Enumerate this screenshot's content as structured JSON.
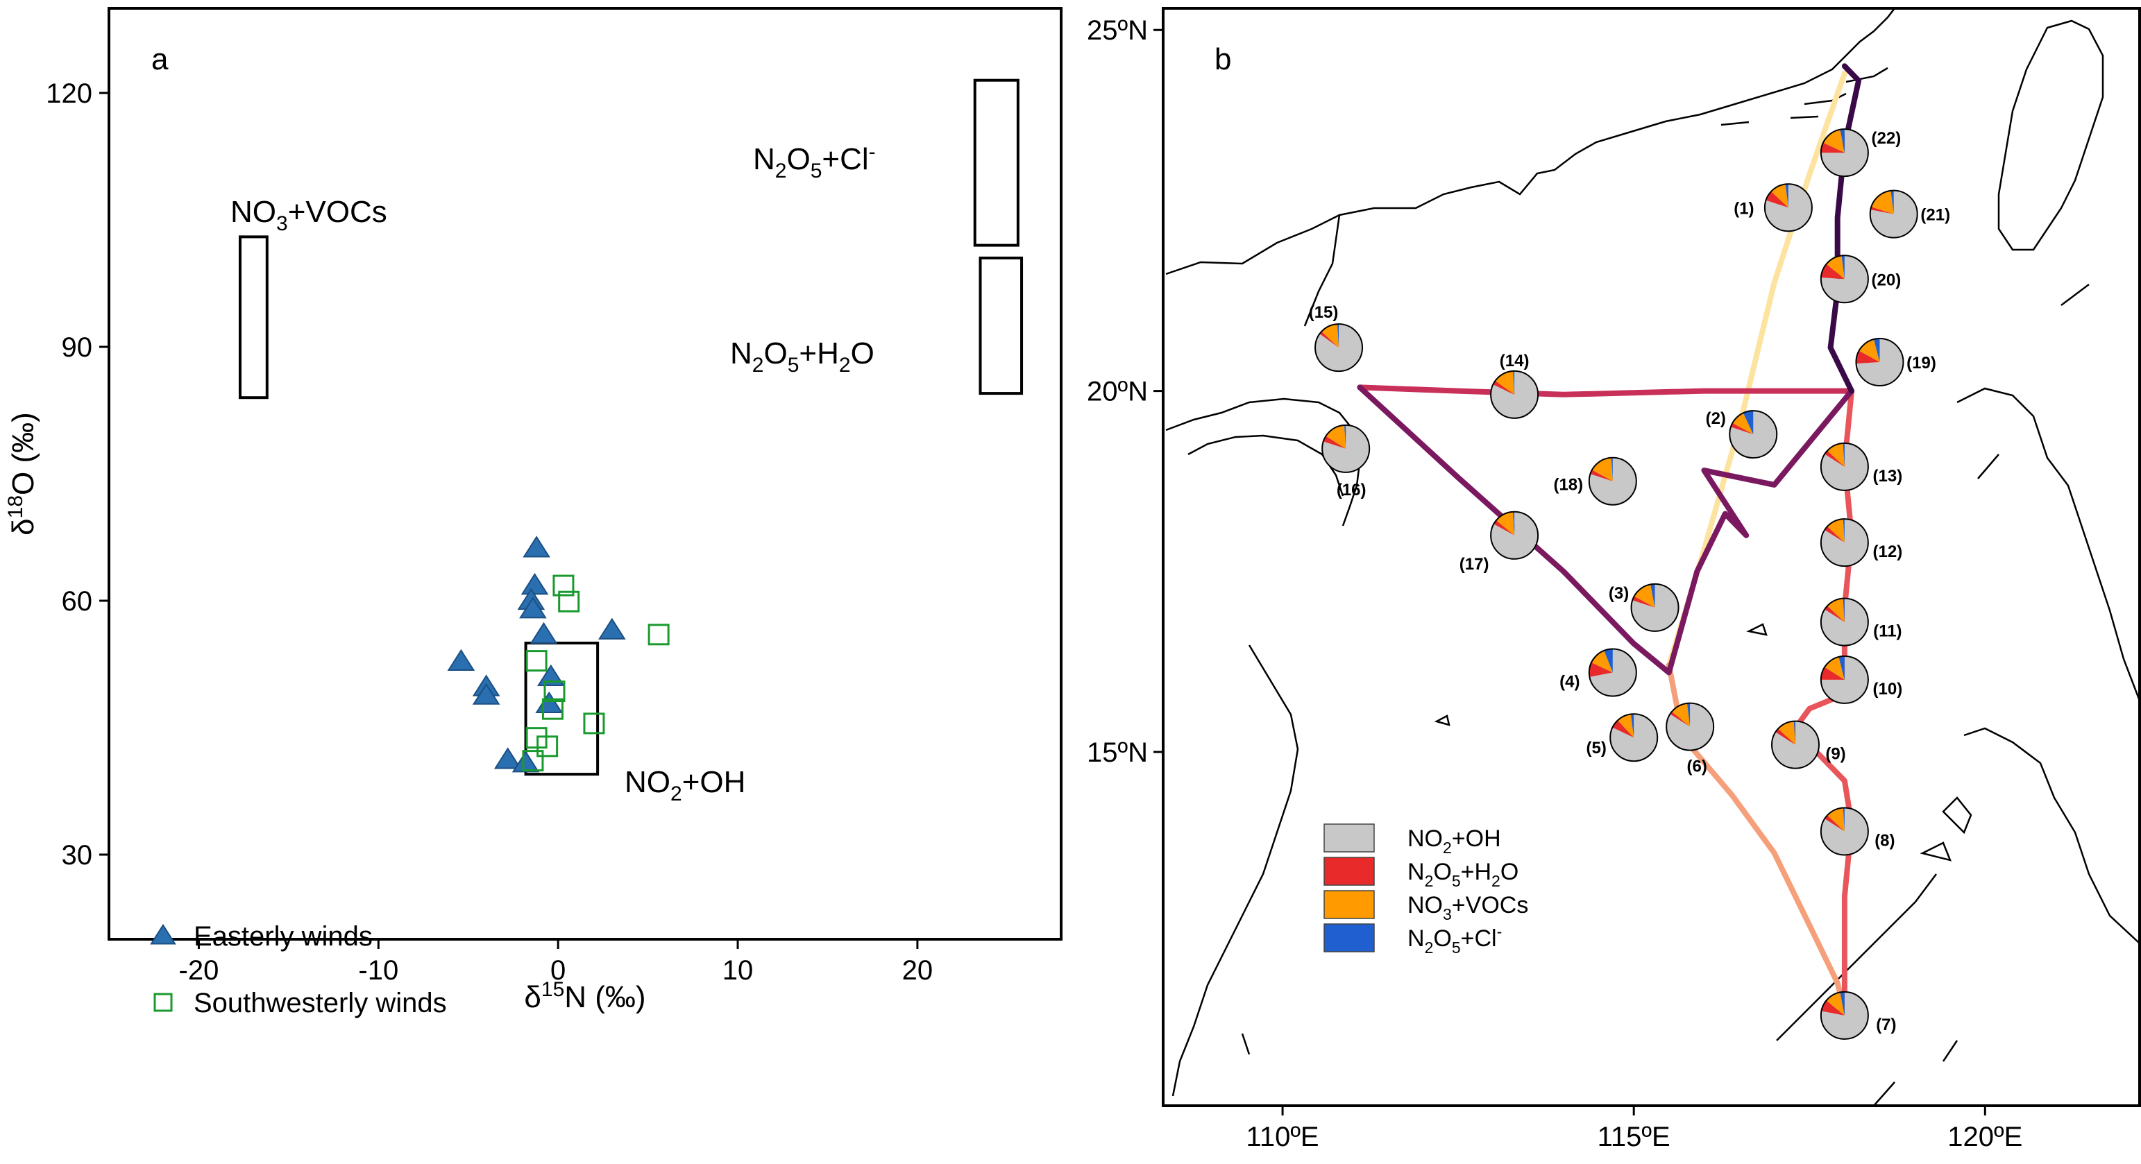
{
  "chart_data": [
    {
      "panel_label": "a",
      "type": "scatter",
      "xlabel": "δ15N (‰)",
      "ylabel": "δ18O (‰)",
      "xlim": [
        -25,
        28
      ],
      "ylim": [
        20,
        130
      ],
      "x_ticks": [
        -20,
        -10,
        0,
        10,
        20
      ],
      "y_ticks": [
        30,
        60,
        90,
        120
      ],
      "series": [
        {
          "name": "Easterly winds",
          "marker": "filled-triangle",
          "color": "#2a6fb0",
          "points": [
            {
              "x": -1.2,
              "y": 66.2
            },
            {
              "x": -1.3,
              "y": 61.8
            },
            {
              "x": -1.5,
              "y": 60.0
            },
            {
              "x": -1.4,
              "y": 59.0
            },
            {
              "x": 3.0,
              "y": 56.5
            },
            {
              "x": -0.8,
              "y": 56.0
            },
            {
              "x": -5.4,
              "y": 52.8
            },
            {
              "x": -0.4,
              "y": 51.0
            },
            {
              "x": -4.0,
              "y": 49.8
            },
            {
              "x": -4.0,
              "y": 48.8
            },
            {
              "x": -0.5,
              "y": 47.8
            },
            {
              "x": -2.8,
              "y": 41.2
            },
            {
              "x": -1.8,
              "y": 40.8
            }
          ]
        },
        {
          "name": "Southwesterly winds",
          "marker": "open-square",
          "color": "#1a9a2e",
          "points": [
            {
              "x": 0.3,
              "y": 61.8
            },
            {
              "x": 0.6,
              "y": 59.9
            },
            {
              "x": 5.6,
              "y": 56.0
            },
            {
              "x": -1.2,
              "y": 52.9
            },
            {
              "x": -0.2,
              "y": 49.3
            },
            {
              "x": -0.3,
              "y": 47.2
            },
            {
              "x": 2.0,
              "y": 45.5
            },
            {
              "x": -1.2,
              "y": 43.8
            },
            {
              "x": -0.6,
              "y": 42.8
            },
            {
              "x": -1.4,
              "y": 41.1
            }
          ]
        }
      ],
      "regions": [
        {
          "name": "NO3+VOCs",
          "x": [
            -17.7,
            -16.2
          ],
          "y": [
            84,
            103
          ]
        },
        {
          "name": "N2O5+Cl-",
          "x": [
            23.2,
            25.6
          ],
          "y": [
            102,
            121.5
          ]
        },
        {
          "name": "N2O5+H2O",
          "x": [
            23.5,
            25.8
          ],
          "y": [
            84.5,
            100.5
          ]
        },
        {
          "name": "NO2+OH",
          "x": [
            -1.8,
            2.2
          ],
          "y": [
            39.5,
            55
          ]
        }
      ],
      "region_labels": [
        {
          "region": "NO3+VOCs",
          "main": "NO",
          "sub": "3",
          "rest": "+VOCs"
        },
        {
          "region": "N2O5+Cl-",
          "main": "N",
          "sub": "2",
          "main2": "O",
          "sub2": "5",
          "rest": "+Cl",
          "sup": "-"
        },
        {
          "region": "N2O5+H2O",
          "main": "N",
          "sub": "2",
          "main2": "O",
          "sub2": "5",
          "rest": "+H",
          "sub3": "2",
          "rest2": "O"
        },
        {
          "region": "NO2+OH",
          "main": "NO",
          "sub": "2",
          "rest": "+OH"
        }
      ],
      "legend": [
        {
          "label": "Easterly winds",
          "series": "Easterly winds"
        },
        {
          "label": "Southwesterly winds",
          "series": "Southwesterly winds"
        }
      ],
      "legend_position": "bottom-left"
    },
    {
      "panel_label": "b",
      "type": "map-pie",
      "lon_range": [
        108.3,
        122.2
      ],
      "lat_range": [
        10.1,
        25.3
      ],
      "lon_ticks": [
        110,
        115,
        120
      ],
      "lat_ticks": [
        15,
        20,
        25
      ],
      "lon_tick_labels": [
        "110ºE",
        "115ºE",
        "120ºE"
      ],
      "lat_tick_labels": [
        "15ºN",
        "20ºN",
        "25ºN"
      ],
      "pie_categories": [
        "NO2+OH",
        "N2O5+H2O",
        "NO3+VOCs",
        "N2O5+Cl-"
      ],
      "pie_colors": [
        "#c8c8c8",
        "#e82a2a",
        "#ff9a00",
        "#1f5fd0"
      ],
      "legend_labels": [
        {
          "main": "NO",
          "sub": "2",
          "rest": "+OH"
        },
        {
          "main": "N",
          "sub": "2",
          "main2": "O",
          "sub2": "5",
          "rest": "+H",
          "sub3": "2",
          "rest2": "O"
        },
        {
          "main": "NO",
          "sub": "3",
          "rest": "+VOCs"
        },
        {
          "main": "N",
          "sub": "2",
          "main2": "O",
          "sub2": "5",
          "rest": "+Cl",
          "sup": "-"
        }
      ],
      "sites": [
        {
          "label": "(1)",
          "lon": 117.2,
          "lat": 22.54,
          "fractions": [
            0.8,
            0.07,
            0.11,
            0.02
          ]
        },
        {
          "label": "(2)",
          "lon": 116.7,
          "lat": 19.4,
          "fractions": [
            0.8,
            0.03,
            0.1,
            0.07
          ]
        },
        {
          "label": "(3)",
          "lon": 115.3,
          "lat": 17.0,
          "fractions": [
            0.8,
            0.03,
            0.14,
            0.03
          ]
        },
        {
          "label": "(4)",
          "lon": 114.7,
          "lat": 16.1,
          "fractions": [
            0.72,
            0.1,
            0.12,
            0.06
          ]
        },
        {
          "label": "(5)",
          "lon": 115.0,
          "lat": 15.2,
          "fractions": [
            0.82,
            0.06,
            0.1,
            0.02
          ]
        },
        {
          "label": "(6)",
          "lon": 115.8,
          "lat": 15.35,
          "fractions": [
            0.84,
            0.02,
            0.12,
            0.02
          ]
        },
        {
          "label": "(7)",
          "lon": 118.0,
          "lat": 11.35,
          "fractions": [
            0.78,
            0.08,
            0.11,
            0.03
          ]
        },
        {
          "label": "(8)",
          "lon": 118.0,
          "lat": 13.9,
          "fractions": [
            0.84,
            0.03,
            0.12,
            0.01
          ]
        },
        {
          "label": "(9)",
          "lon": 117.3,
          "lat": 15.1,
          "fractions": [
            0.84,
            0.03,
            0.12,
            0.01
          ]
        },
        {
          "label": "(10)",
          "lon": 118.0,
          "lat": 16.0,
          "fractions": [
            0.75,
            0.09,
            0.12,
            0.04
          ]
        },
        {
          "label": "(11)",
          "lon": 118.0,
          "lat": 16.8,
          "fractions": [
            0.84,
            0.03,
            0.12,
            0.01
          ]
        },
        {
          "label": "(12)",
          "lon": 118.0,
          "lat": 17.9,
          "fractions": [
            0.84,
            0.03,
            0.12,
            0.01
          ]
        },
        {
          "label": "(13)",
          "lon": 118.0,
          "lat": 18.95,
          "fractions": [
            0.84,
            0.03,
            0.12,
            0.01
          ]
        },
        {
          "label": "(14)",
          "lon": 113.3,
          "lat": 19.95,
          "fractions": [
            0.82,
            0.03,
            0.14,
            0.01
          ]
        },
        {
          "label": "(15)",
          "lon": 110.8,
          "lat": 20.6,
          "fractions": [
            0.85,
            0.02,
            0.12,
            0.01
          ]
        },
        {
          "label": "(16)",
          "lon": 110.9,
          "lat": 19.2,
          "fractions": [
            0.8,
            0.04,
            0.15,
            0.01
          ]
        },
        {
          "label": "(17)",
          "lon": 113.3,
          "lat": 18.0,
          "fractions": [
            0.83,
            0.03,
            0.13,
            0.01
          ]
        },
        {
          "label": "(18)",
          "lon": 114.7,
          "lat": 18.75,
          "fractions": [
            0.8,
            0.03,
            0.16,
            0.01
          ]
        },
        {
          "label": "(19)",
          "lon": 118.5,
          "lat": 20.4,
          "fractions": [
            0.74,
            0.09,
            0.13,
            0.04
          ]
        },
        {
          "label": "(20)",
          "lon": 118.0,
          "lat": 21.55,
          "fractions": [
            0.76,
            0.1,
            0.12,
            0.02
          ]
        },
        {
          "label": "(21)",
          "lon": 118.7,
          "lat": 22.45,
          "fractions": [
            0.78,
            0.02,
            0.18,
            0.02
          ]
        },
        {
          "label": "(22)",
          "lon": 118.0,
          "lat": 23.3,
          "fractions": [
            0.75,
            0.07,
            0.15,
            0.03
          ]
        }
      ],
      "cruise_tracks": [
        {
          "name": "leg-1",
          "color": "#fde3a0",
          "points": [
            [
              118.0,
              24.4
            ],
            [
              117.5,
              23.0
            ],
            [
              117.0,
              21.5
            ],
            [
              116.5,
              19.5
            ],
            [
              116.0,
              17.8
            ],
            [
              115.5,
              16.2
            ]
          ]
        },
        {
          "name": "leg-2",
          "color": "#f5a07a",
          "points": [
            [
              115.5,
              16.2
            ],
            [
              115.7,
              15.2
            ],
            [
              116.4,
              14.4
            ],
            [
              117.0,
              13.6
            ],
            [
              117.5,
              12.6
            ],
            [
              117.9,
              11.8
            ],
            [
              118.0,
              11.4
            ]
          ]
        },
        {
          "name": "leg-3",
          "color": "#e8555a",
          "points": [
            [
              118.0,
              11.4
            ],
            [
              118.0,
              13.0
            ],
            [
              118.1,
              14.0
            ],
            [
              118.0,
              14.6
            ],
            [
              117.6,
              15.0
            ],
            [
              117.2,
              15.2
            ],
            [
              117.5,
              15.6
            ],
            [
              118.0,
              15.8
            ],
            [
              118.0,
              17.0
            ],
            [
              118.1,
              18.0
            ],
            [
              118.0,
              19.0
            ],
            [
              118.1,
              20.0
            ]
          ]
        },
        {
          "name": "leg-4",
          "color": "#c8305a",
          "points": [
            [
              118.1,
              20.0
            ],
            [
              116.0,
              20.0
            ],
            [
              114.0,
              19.95
            ],
            [
              112.5,
              20.0
            ],
            [
              111.1,
              20.05
            ]
          ]
        },
        {
          "name": "leg-5",
          "color": "#7a1860",
          "points": [
            [
              111.1,
              20.05
            ],
            [
              112.5,
              18.8
            ],
            [
              114.0,
              17.5
            ],
            [
              115.0,
              16.5
            ],
            [
              115.5,
              16.1
            ],
            [
              115.9,
              17.5
            ],
            [
              116.3,
              18.3
            ],
            [
              116.6,
              18.0
            ],
            [
              116.0,
              18.9
            ],
            [
              117.0,
              18.7
            ],
            [
              118.1,
              20.0
            ]
          ]
        },
        {
          "name": "leg-6",
          "color": "#3a0a48",
          "points": [
            [
              118.1,
              20.0
            ],
            [
              117.8,
              20.6
            ],
            [
              117.9,
              21.4
            ],
            [
              117.9,
              22.4
            ],
            [
              118.0,
              23.4
            ],
            [
              118.2,
              24.3
            ],
            [
              118.0,
              24.5
            ]
          ]
        }
      ]
    }
  ]
}
